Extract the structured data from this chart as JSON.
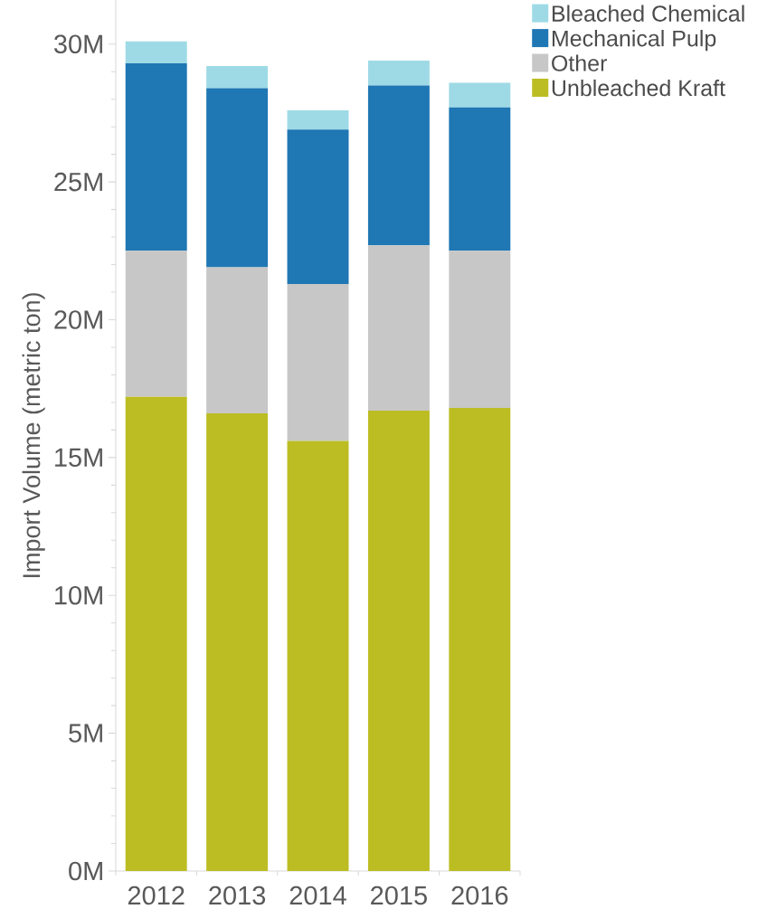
{
  "chart_data": {
    "type": "bar",
    "stacked": true,
    "ylabel": "Import Volume (metric ton)",
    "categories": [
      "2012",
      "2013",
      "2014",
      "2015",
      "2016"
    ],
    "series": [
      {
        "name": "Unbleached Kraft",
        "color": "#bcbd22",
        "values": [
          17.2,
          16.6,
          15.6,
          16.7,
          16.8
        ]
      },
      {
        "name": "Other",
        "color": "#c7c7c7",
        "values": [
          5.3,
          5.3,
          5.7,
          6.0,
          5.7
        ]
      },
      {
        "name": "Mechanical Pulp",
        "color": "#1f77b4",
        "values": [
          6.8,
          6.5,
          5.6,
          5.8,
          5.2
        ]
      },
      {
        "name": "Bleached Chemical",
        "color": "#9edae5",
        "values": [
          0.8,
          0.8,
          0.7,
          0.9,
          0.9
        ]
      }
    ],
    "ylim": [
      0,
      31.6
    ],
    "yticks": [
      {
        "value": 0,
        "label": "0M"
      },
      {
        "value": 5,
        "label": "5M"
      },
      {
        "value": 10,
        "label": "10M"
      },
      {
        "value": 15,
        "label": "15M"
      },
      {
        "value": 20,
        "label": "20M"
      },
      {
        "value": 25,
        "label": "25M"
      },
      {
        "value": 30,
        "label": "30M"
      }
    ],
    "legend": "top right"
  }
}
